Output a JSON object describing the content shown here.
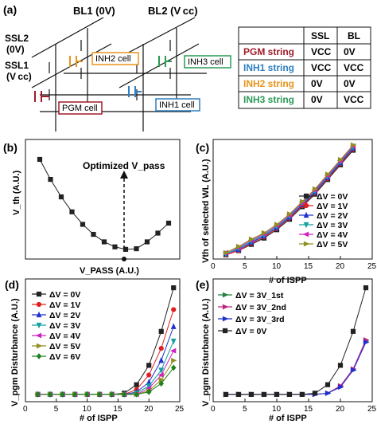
{
  "panel_a": {
    "label": "(a)",
    "bl1": "BL1 (0V)",
    "bl2": "BL2 (V cc)",
    "ssl2": "SSL2",
    "ssl2_v": "(0V)",
    "ssl1": "SSL1",
    "ssl1_v": "(V cc)",
    "cells": [
      {
        "name": "INH2 cell",
        "color": "#e8941a"
      },
      {
        "name": "INH3 cell",
        "color": "#2a9a55"
      },
      {
        "name": "PGM cell",
        "color": "#a01c2a"
      },
      {
        "name": "INH1 cell",
        "color": "#2d7fc1"
      }
    ],
    "table": {
      "headers": [
        "",
        "SSL",
        "BL"
      ],
      "rows": [
        {
          "label": "PGM string",
          "color": "#a01c2a",
          "ssl": "VCC",
          "bl": "0V"
        },
        {
          "label": "INH1 string",
          "color": "#2d7fc1",
          "ssl": "VCC",
          "bl": "VCC"
        },
        {
          "label": "INH2 string",
          "color": "#e8941a",
          "ssl": "0V",
          "bl": "0V"
        },
        {
          "label": "INH3 string",
          "color": "#2a9a55",
          "ssl": "0V",
          "bl": "VCC"
        }
      ]
    }
  },
  "chart_data": [
    {
      "panel": "(b)",
      "type": "line",
      "xlabel": "V_PASS (A.U.)",
      "ylabel": "V_th (A.U.)",
      "annotation": "Optimized V_pass",
      "x": [
        1,
        2,
        3,
        4,
        5,
        6,
        7,
        8,
        9,
        10,
        11,
        12,
        13
      ],
      "values": [
        8.2,
        6.6,
        5.2,
        4.0,
        3.0,
        2.2,
        1.6,
        1.2,
        1.0,
        1.05,
        1.6,
        2.3,
        3.1
      ]
    },
    {
      "panel": "(c)",
      "type": "line",
      "xlabel": "# of ISPP",
      "ylabel": "Vth of selected WL (A.U.)",
      "xlim": [
        0,
        25
      ],
      "xticks": [
        0,
        5,
        10,
        15,
        20,
        25
      ],
      "x": [
        2,
        4,
        6,
        8,
        10,
        12,
        14,
        16,
        18,
        20,
        22
      ],
      "series": [
        {
          "name": "ΔV = 0V",
          "color": "#222222",
          "marker": "square",
          "values": [
            0.2,
            0.4,
            0.7,
            1.0,
            1.4,
            1.9,
            2.5,
            3.1,
            3.8,
            4.5,
            5.2
          ]
        },
        {
          "name": "ΔV = 1V",
          "color": "#e02020",
          "marker": "circle",
          "values": [
            0.2,
            0.4,
            0.75,
            1.05,
            1.45,
            1.95,
            2.55,
            3.15,
            3.85,
            4.55,
            5.25
          ]
        },
        {
          "name": "ΔV = 2V",
          "color": "#2030d0",
          "marker": "triangle-up",
          "values": [
            0.25,
            0.45,
            0.8,
            1.1,
            1.5,
            2.0,
            2.6,
            3.2,
            3.9,
            4.6,
            5.3
          ]
        },
        {
          "name": "ΔV = 3V",
          "color": "#16a0a0",
          "marker": "triangle-down",
          "values": [
            0.25,
            0.5,
            0.85,
            1.15,
            1.55,
            2.05,
            2.65,
            3.25,
            3.95,
            4.65,
            5.35
          ]
        },
        {
          "name": "ΔV = 4V",
          "color": "#d020c0",
          "marker": "triangle-left",
          "values": [
            0.3,
            0.55,
            0.9,
            1.2,
            1.6,
            2.1,
            2.7,
            3.3,
            4.0,
            4.7,
            5.4
          ]
        },
        {
          "name": "ΔV = 5V",
          "color": "#909020",
          "marker": "triangle-right",
          "values": [
            0.3,
            0.6,
            0.95,
            1.25,
            1.65,
            2.15,
            2.75,
            3.35,
            4.05,
            4.75,
            5.45
          ]
        }
      ]
    },
    {
      "panel": "(d)",
      "type": "line",
      "xlabel": "# of ISPP",
      "ylabel": "V_pgm Disturbance (A.U.)",
      "xlim": [
        0,
        25
      ],
      "xticks": [
        0,
        5,
        10,
        15,
        20,
        25
      ],
      "x": [
        2,
        4,
        6,
        8,
        10,
        12,
        14,
        16,
        18,
        20,
        22,
        24
      ],
      "series": [
        {
          "name": "ΔV = 0V",
          "color": "#222222",
          "marker": "square",
          "values": [
            0,
            0,
            0,
            0,
            0,
            0,
            0,
            0.05,
            0.4,
            1.2,
            2.6,
            4.4
          ]
        },
        {
          "name": "ΔV = 1V",
          "color": "#e02020",
          "marker": "circle",
          "values": [
            0,
            0,
            0,
            0,
            0,
            0,
            0,
            0,
            0.2,
            0.8,
            1.9,
            3.5
          ]
        },
        {
          "name": "ΔV = 2V",
          "color": "#2030d0",
          "marker": "triangle-up",
          "values": [
            0,
            0,
            0,
            0,
            0,
            0,
            0,
            0,
            0.1,
            0.5,
            1.4,
            2.8
          ]
        },
        {
          "name": "ΔV = 3V",
          "color": "#16a0a0",
          "marker": "triangle-down",
          "values": [
            0,
            0,
            0,
            0,
            0,
            0,
            0,
            0,
            0.05,
            0.35,
            1.0,
            2.2
          ]
        },
        {
          "name": "ΔV = 4V",
          "color": "#d020c0",
          "marker": "triangle-left",
          "values": [
            0,
            0,
            0,
            0,
            0,
            0,
            0,
            0,
            0,
            0.25,
            0.8,
            1.8
          ]
        },
        {
          "name": "ΔV = 5V",
          "color": "#909020",
          "marker": "triangle-right",
          "values": [
            0,
            0,
            0,
            0,
            0,
            0,
            0,
            0,
            0,
            0.15,
            0.6,
            1.4
          ]
        },
        {
          "name": "ΔV = 6V",
          "color": "#208020",
          "marker": "diamond",
          "values": [
            0,
            0,
            0,
            0,
            0,
            0,
            0,
            0,
            0,
            0.1,
            0.45,
            1.1
          ]
        }
      ]
    },
    {
      "panel": "(e)",
      "type": "line",
      "xlabel": "# of ISPP",
      "ylabel": "V_pgm Disturbance (A.U.)",
      "xlim": [
        0,
        25
      ],
      "xticks": [
        0,
        5,
        10,
        15,
        20,
        25
      ],
      "x": [
        2,
        4,
        6,
        8,
        10,
        12,
        14,
        16,
        18,
        20,
        22,
        24
      ],
      "series": [
        {
          "name": "ΔV = 3V_1st",
          "color": "#208040",
          "marker": "triangle-right",
          "values": [
            0,
            0,
            0,
            0,
            0,
            0,
            0,
            0,
            0.05,
            0.35,
            1.0,
            2.2
          ]
        },
        {
          "name": "ΔV = 3V_2nd",
          "color": "#c02080",
          "marker": "triangle-right",
          "values": [
            0,
            0,
            0,
            0,
            0,
            0,
            0,
            0,
            0.05,
            0.35,
            1.05,
            2.25
          ]
        },
        {
          "name": "ΔV = 3V_3rd",
          "color": "#2030d0",
          "marker": "triangle-right",
          "values": [
            0,
            0,
            0,
            0,
            0,
            0,
            0,
            0,
            0.05,
            0.3,
            1.0,
            2.15
          ]
        },
        {
          "name": "ΔV = 0V",
          "color": "#222222",
          "marker": "square",
          "values": [
            0,
            0,
            0,
            0,
            0,
            0,
            0,
            0.05,
            0.4,
            1.2,
            2.6,
            4.4
          ]
        }
      ]
    }
  ]
}
